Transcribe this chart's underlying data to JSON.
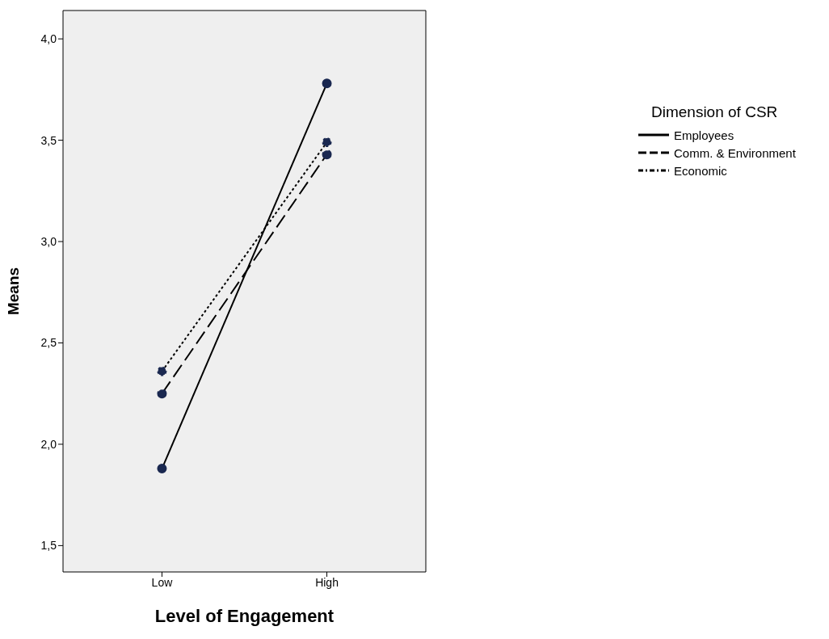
{
  "chart_data": {
    "type": "line",
    "xlabel": "Level of Engagement",
    "ylabel": "Means",
    "legend_title": "Dimension of CSR",
    "legend": "right",
    "grid": false,
    "marker": "circle",
    "categories": [
      "Low",
      "High"
    ],
    "ylim": [
      1.37,
      4.14
    ],
    "yticks": [
      {
        "value": 1.5,
        "label": "1,5"
      },
      {
        "value": 2,
        "label": "2,0"
      },
      {
        "value": 2.5,
        "label": "2,5"
      },
      {
        "value": 3,
        "label": "3,0"
      },
      {
        "value": 3.5,
        "label": "3,5"
      },
      {
        "value": 4,
        "label": "4,0"
      }
    ],
    "series": [
      {
        "name": "Employees",
        "color": "#000000",
        "line_style": "solid",
        "values": [
          1.88,
          3.78
        ]
      },
      {
        "name": "Comm. & Environment",
        "color": "#000000",
        "line_style": "dashed",
        "values": [
          2.25,
          3.43
        ]
      },
      {
        "name": "Economic",
        "color": "#000000",
        "line_style": "dotted",
        "values": [
          2.36,
          3.49
        ]
      }
    ]
  }
}
